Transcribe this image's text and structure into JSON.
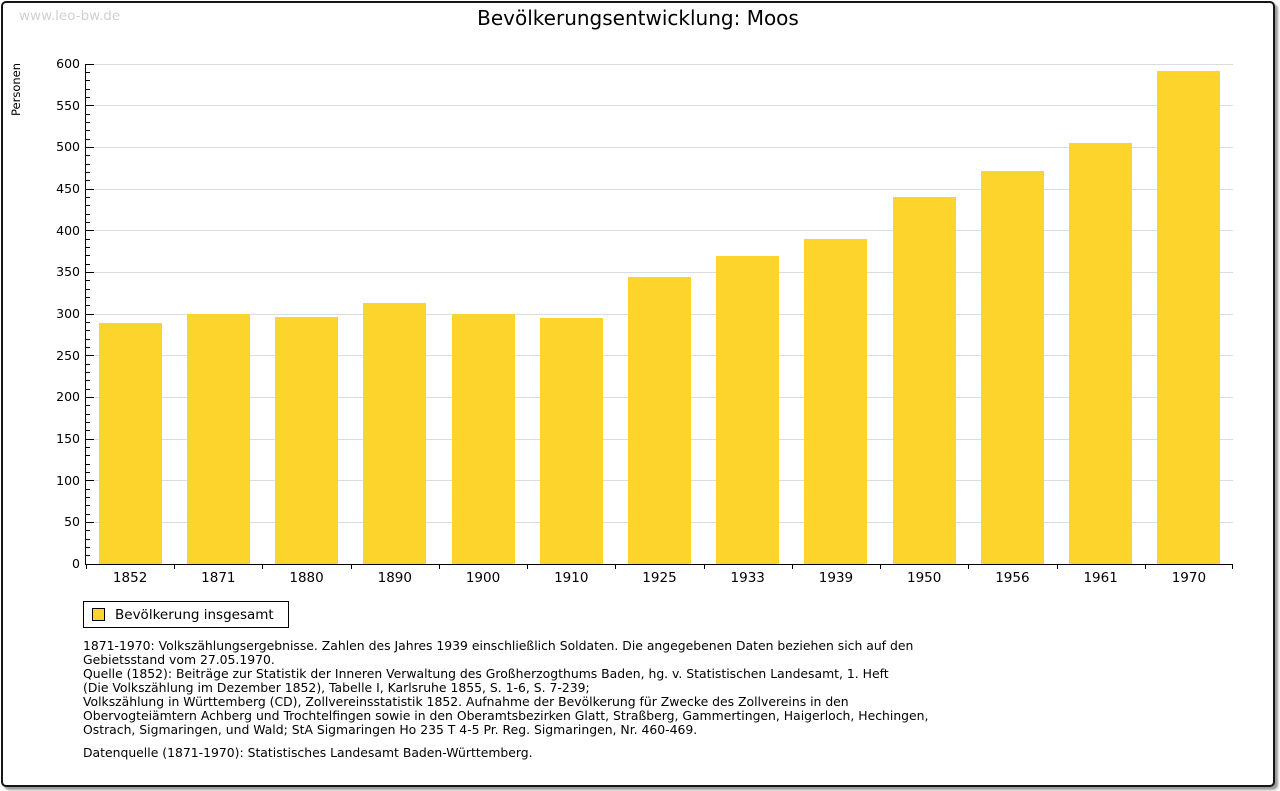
{
  "watermark": "www.leo-bw.de",
  "title": "Bevölkerungsentwicklung: Moos",
  "legend": {
    "label": "Bevölkerung insgesamt",
    "swatch_color": "#fcd42c"
  },
  "chart_data": {
    "type": "bar",
    "title": "Bevölkerungsentwicklung: Moos",
    "xlabel": "",
    "ylabel": "Personen",
    "categories": [
      "1852",
      "1871",
      "1880",
      "1890",
      "1900",
      "1910",
      "1925",
      "1933",
      "1939",
      "1950",
      "1956",
      "1961",
      "1970"
    ],
    "values": [
      289,
      300,
      297,
      313,
      300,
      295,
      345,
      370,
      390,
      440,
      472,
      505,
      592
    ],
    "series_name": "Bevölkerung insgesamt",
    "ylim": [
      0,
      600
    ],
    "ytick_step": 50,
    "minor_tick_step": 10,
    "grid": "horizontal",
    "gridline_color": "#dcdcdc",
    "bar_color": "#fcd42c",
    "legend_position": "bottom-left"
  },
  "notes": {
    "lines": [
      "1871-1970: Volkszählungsergebnisse. Zahlen des Jahres 1939 einschließlich Soldaten. Die angegebenen Daten beziehen sich auf den",
      "Gebietsstand vom 27.05.1970.",
      "Quelle (1852): Beiträge zur Statistik der Inneren Verwaltung des Großherzogthums Baden, hg. v. Statistischen Landesamt, 1. Heft",
      "(Die Volkszählung im Dezember 1852), Tabelle I, Karlsruhe 1855, S. 1-6, S. 7-239;",
      "Volkszählung in Württemberg (CD), Zollvereinsstatistik 1852. Aufnahme der Bevölkerung für Zwecke des Zollvereins in den",
      "Obervogteiämtern Achberg und Trochtelfingen sowie in den Oberamtsbezirken Glatt, Straßberg, Gammertingen, Haigerloch, Hechingen,",
      "Ostrach, Sigmaringen, und Wald; StA Sigmaringen Ho 235 T 4-5 Pr. Reg. Sigmaringen, Nr. 460-469."
    ]
  },
  "datasource": "Datenquelle (1871-1970): Statistisches Landesamt Baden-Württemberg."
}
